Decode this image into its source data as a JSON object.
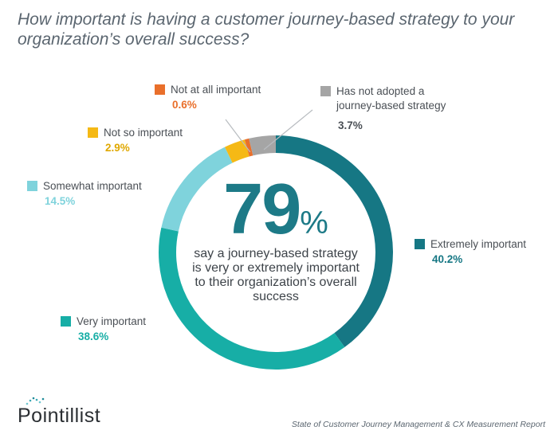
{
  "chart_data": {
    "type": "pie",
    "variant": "donut",
    "title": "How important is having a customer journey-based strategy to your organization’s overall success?",
    "categories": [
      "Extremely important",
      "Very important",
      "Somewhat important",
      "Not so important",
      "Not at all important",
      "Has not adopted a journey-based strategy"
    ],
    "values": [
      40.2,
      38.6,
      14.5,
      2.9,
      0.6,
      3.7
    ],
    "value_labels": [
      "40.2%",
      "38.6%",
      "14.5%",
      "2.9%",
      "0.6%",
      "3.7%"
    ],
    "colors": [
      "#167784",
      "#17aea6",
      "#7fd3dc",
      "#f5b915",
      "#e96f2b",
      "#a5a5a5"
    ],
    "legend_placement": "around",
    "center": {
      "value": "79",
      "unit": "%",
      "text": "say a journey-based strategy is very or extremely important to their organization’s overall success"
    }
  },
  "branding": {
    "logo": "Pointillist",
    "logo_icon": "dots-icon"
  },
  "source": "State of Customer Journey Management & CX Measurement Report"
}
